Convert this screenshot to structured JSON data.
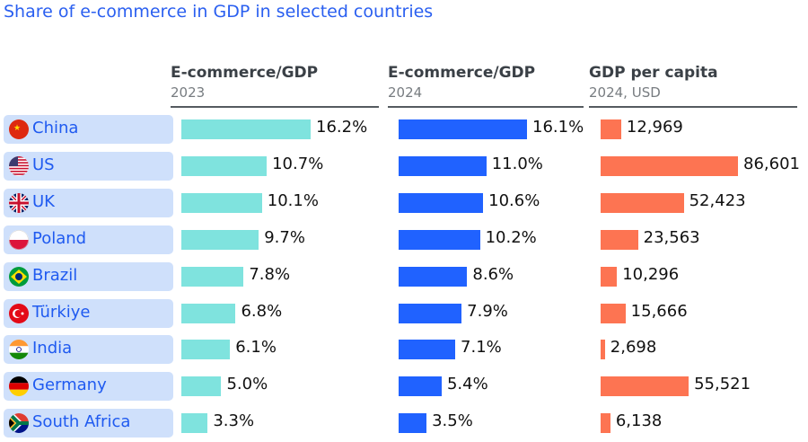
{
  "title": "Share of e-commerce in GDP in selected countries",
  "chart_data": {
    "type": "bar",
    "title": "Share of e-commerce in GDP in selected countries",
    "categories": [
      "China",
      "US",
      "UK",
      "Poland",
      "Brazil",
      "Türkiye",
      "India",
      "Germany",
      "South Africa"
    ],
    "flag_icons": [
      "china-flag-icon",
      "us-flag-icon",
      "uk-flag-icon",
      "poland-flag-icon",
      "brazil-flag-icon",
      "turkiye-flag-icon",
      "india-flag-icon",
      "germany-flag-icon",
      "south-africa-flag-icon"
    ],
    "series": [
      {
        "name": "E-commerce/GDP",
        "sub": "2023",
        "color": "#7fe3de",
        "values": [
          16.2,
          10.7,
          10.1,
          9.7,
          7.8,
          6.8,
          6.1,
          5.0,
          3.3
        ],
        "labels": [
          "16.2%",
          "10.7%",
          "10.1%",
          "9.7%",
          "7.8%",
          "6.8%",
          "6.1%",
          "5.0%",
          "3.3%"
        ]
      },
      {
        "name": "E-commerce/GDP",
        "sub": "2024",
        "color": "#2062ff",
        "values": [
          16.1,
          11.0,
          10.6,
          10.2,
          8.6,
          7.9,
          7.1,
          5.4,
          3.5
        ],
        "labels": [
          "16.1%",
          "11.0%",
          "10.6%",
          "10.2%",
          "8.6%",
          "7.9%",
          "7.1%",
          "5.4%",
          "3.5%"
        ]
      },
      {
        "name": "GDP per capita",
        "sub": "2024, USD",
        "color": "#fd7452",
        "values": [
          12969,
          86601,
          52423,
          23563,
          10296,
          15666,
          2698,
          55521,
          6138
        ],
        "labels": [
          "12,969",
          "86,601",
          "52,423",
          "23,563",
          "10,296",
          "15,666",
          "2,698",
          "55,521",
          "6,138"
        ]
      }
    ]
  }
}
